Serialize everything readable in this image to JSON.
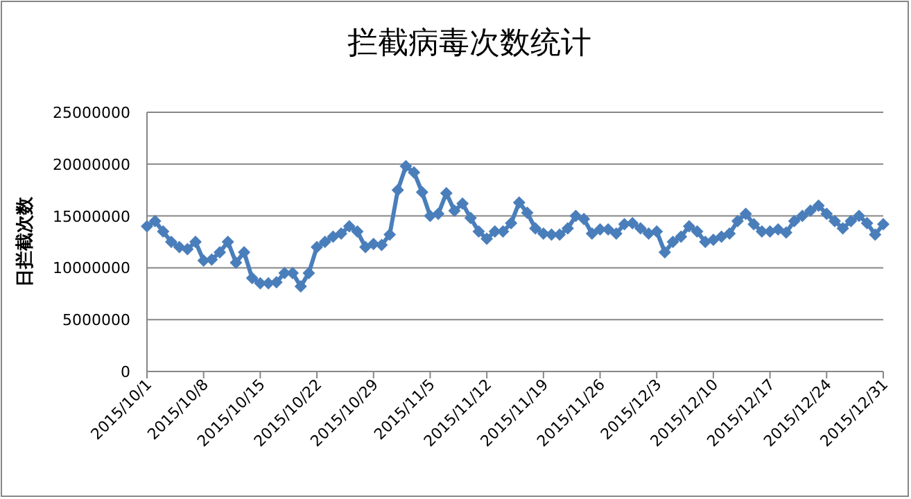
{
  "chart_data": {
    "type": "line",
    "title": "拦截病毒次数统计",
    "ylabel": "日拦截次数",
    "xlim": [
      "2015-10-01",
      "2015-12-31"
    ],
    "xticks": [
      {
        "value": "2015-10-01",
        "label": "2015/10/1"
      },
      {
        "value": "2015-10-08",
        "label": "2015/10/8"
      },
      {
        "value": "2015-10-15",
        "label": "2015/10/15"
      },
      {
        "value": "2015-10-22",
        "label": "2015/10/22"
      },
      {
        "value": "2015-10-29",
        "label": "2015/10/29"
      },
      {
        "value": "2015-11-05",
        "label": "2015/11/5"
      },
      {
        "value": "2015-11-12",
        "label": "2015/11/12"
      },
      {
        "value": "2015-11-19",
        "label": "2015/11/19"
      },
      {
        "value": "2015-11-26",
        "label": "2015/11/26"
      },
      {
        "value": "2015-12-03",
        "label": "2015/12/3"
      },
      {
        "value": "2015-12-10",
        "label": "2015/12/10"
      },
      {
        "value": "2015-12-17",
        "label": "2015/12/17"
      },
      {
        "value": "2015-12-24",
        "label": "2015/12/24"
      },
      {
        "value": "2015-12-31",
        "label": "2015/12/31"
      }
    ],
    "ylim": [
      0,
      25000000
    ],
    "yticks": [
      0,
      5000000,
      10000000,
      15000000,
      20000000,
      25000000
    ],
    "grid": "y",
    "marker": "diamond",
    "line_style": "solid",
    "x": [
      "2015-10-01",
      "2015-10-02",
      "2015-10-03",
      "2015-10-04",
      "2015-10-05",
      "2015-10-06",
      "2015-10-07",
      "2015-10-08",
      "2015-10-09",
      "2015-10-10",
      "2015-10-11",
      "2015-10-12",
      "2015-10-13",
      "2015-10-14",
      "2015-10-15",
      "2015-10-16",
      "2015-10-17",
      "2015-10-18",
      "2015-10-19",
      "2015-10-20",
      "2015-10-21",
      "2015-10-22",
      "2015-10-23",
      "2015-10-24",
      "2015-10-25",
      "2015-10-26",
      "2015-10-27",
      "2015-10-28",
      "2015-10-29",
      "2015-10-30",
      "2015-10-31",
      "2015-11-01",
      "2015-11-02",
      "2015-11-03",
      "2015-11-04",
      "2015-11-05",
      "2015-11-06",
      "2015-11-07",
      "2015-11-08",
      "2015-11-09",
      "2015-11-10",
      "2015-11-11",
      "2015-11-12",
      "2015-11-13",
      "2015-11-14",
      "2015-11-15",
      "2015-11-16",
      "2015-11-17",
      "2015-11-18",
      "2015-11-19",
      "2015-11-20",
      "2015-11-21",
      "2015-11-22",
      "2015-11-23",
      "2015-11-24",
      "2015-11-25",
      "2015-11-26",
      "2015-11-27",
      "2015-11-28",
      "2015-11-29",
      "2015-11-30",
      "2015-12-01",
      "2015-12-02",
      "2015-12-03",
      "2015-12-04",
      "2015-12-05",
      "2015-12-06",
      "2015-12-07",
      "2015-12-08",
      "2015-12-09",
      "2015-12-10",
      "2015-12-11",
      "2015-12-12",
      "2015-12-13",
      "2015-12-14",
      "2015-12-15",
      "2015-12-16",
      "2015-12-17",
      "2015-12-18",
      "2015-12-19",
      "2015-12-20",
      "2015-12-21",
      "2015-12-22",
      "2015-12-23",
      "2015-12-24",
      "2015-12-25",
      "2015-12-26",
      "2015-12-27",
      "2015-12-28",
      "2015-12-29",
      "2015-12-30",
      "2015-12-31"
    ],
    "series": [
      {
        "color": "#4a7ebb",
        "values": [
          14000000,
          14500000,
          13500000,
          12500000,
          12000000,
          11800000,
          12500000,
          10700000,
          10800000,
          11500000,
          12500000,
          10500000,
          11500000,
          9000000,
          8500000,
          8500000,
          8600000,
          9500000,
          9500000,
          8200000,
          9500000,
          12000000,
          12500000,
          13000000,
          13300000,
          14000000,
          13500000,
          12000000,
          12300000,
          12200000,
          13200000,
          17500000,
          19800000,
          19200000,
          17300000,
          15000000,
          15200000,
          17200000,
          15500000,
          16200000,
          14800000,
          13500000,
          12800000,
          13500000,
          13500000,
          14300000,
          16300000,
          15300000,
          13800000,
          13300000,
          13200000,
          13200000,
          13800000,
          15000000,
          14700000,
          13300000,
          13700000,
          13700000,
          13300000,
          14200000,
          14300000,
          13800000,
          13300000,
          13500000,
          11500000,
          12500000,
          13000000,
          14000000,
          13500000,
          12500000,
          12700000,
          13000000,
          13300000,
          14500000,
          15200000,
          14200000,
          13500000,
          13500000,
          13700000,
          13400000,
          14500000,
          15000000,
          15500000,
          16000000,
          15200000,
          14500000,
          13800000,
          14500000,
          15000000,
          14300000,
          13200000,
          14200000
        ]
      }
    ]
  }
}
